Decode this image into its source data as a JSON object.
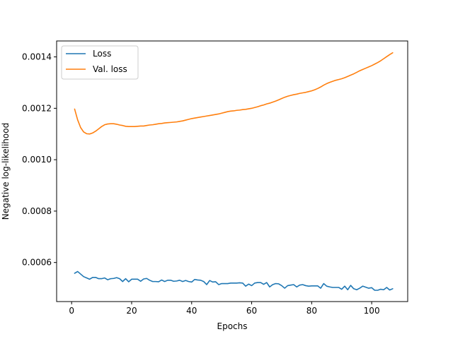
{
  "chart_data": {
    "type": "line",
    "xlabel": "Epochs",
    "ylabel": "Negative log-likelihood",
    "xlim": [
      -5,
      112
    ],
    "ylim": [
      0.000448,
      0.001462
    ],
    "xticks": [
      0,
      20,
      40,
      60,
      80,
      100
    ],
    "xtick_labels": [
      "0",
      "20",
      "40",
      "60",
      "80",
      "100"
    ],
    "yticks": [
      0.0006,
      0.0008,
      0.001,
      0.0012,
      0.0014
    ],
    "ytick_labels": [
      "0.0006",
      "0.0008",
      "0.0010",
      "0.0012",
      "0.0014"
    ],
    "grid": false,
    "legend_position": "top-left",
    "series": [
      {
        "name": "Loss",
        "color": "#1f77b4",
        "x": [
          1,
          2,
          3,
          4,
          5,
          6,
          7,
          8,
          9,
          10,
          11,
          12,
          13,
          14,
          15,
          16,
          17,
          18,
          19,
          20,
          21,
          22,
          23,
          24,
          25,
          26,
          27,
          28,
          29,
          30,
          31,
          32,
          33,
          34,
          35,
          36,
          37,
          38,
          39,
          40,
          41,
          42,
          43,
          44,
          45,
          46,
          47,
          48,
          49,
          50,
          51,
          52,
          53,
          54,
          55,
          56,
          57,
          58,
          59,
          60,
          61,
          62,
          63,
          64,
          65,
          66,
          67,
          68,
          69,
          70,
          71,
          72,
          73,
          74,
          75,
          76,
          77,
          78,
          79,
          80,
          81,
          82,
          83,
          84,
          85,
          86,
          87,
          88,
          89,
          90,
          91,
          92,
          93,
          94,
          95,
          96,
          97,
          98,
          99,
          100,
          101,
          102,
          103,
          104,
          105,
          106,
          107
        ],
        "values": [
          0.000558,
          0.000565,
          0.000555,
          0.000545,
          0.00054,
          0.000535,
          0.000542,
          0.000542,
          0.000537,
          0.000537,
          0.00054,
          0.000533,
          0.000537,
          0.000538,
          0.000541,
          0.000537,
          0.000526,
          0.000537,
          0.000525,
          0.000535,
          0.000535,
          0.000535,
          0.000527,
          0.000536,
          0.000538,
          0.000531,
          0.000526,
          0.000526,
          0.000525,
          0.000532,
          0.000526,
          0.000531,
          0.000531,
          0.000527,
          0.000528,
          0.000531,
          0.000526,
          0.00053,
          0.000526,
          0.000524,
          0.000534,
          0.000532,
          0.000531,
          0.000526,
          0.000514,
          0.00053,
          0.000524,
          0.000525,
          0.000514,
          0.000518,
          0.000518,
          0.000518,
          0.00052,
          0.00052,
          0.00052,
          0.000521,
          0.00052,
          0.000508,
          0.000516,
          0.00051,
          0.00052,
          0.000522,
          0.000522,
          0.000515,
          0.000522,
          0.000505,
          0.000514,
          0.000518,
          0.000517,
          0.00051,
          0.0005,
          0.00051,
          0.000512,
          0.000514,
          0.000505,
          0.000512,
          0.000514,
          0.00051,
          0.000508,
          0.000509,
          0.000509,
          0.000509,
          0.0005,
          0.000518,
          0.000508,
          0.000505,
          0.000503,
          0.000503,
          0.000503,
          0.000496,
          0.000508,
          0.000494,
          0.000511,
          0.000498,
          0.000494,
          0.0005,
          0.000508,
          0.000504,
          0.0005,
          0.000502,
          0.000492,
          0.000492,
          0.000496,
          0.000494,
          0.000503,
          0.000493,
          0.000498
        ]
      },
      {
        "name": "Val. loss",
        "color": "#ff7f0e",
        "x": [
          1,
          2,
          3,
          4,
          5,
          6,
          7,
          8,
          9,
          10,
          11,
          12,
          13,
          14,
          15,
          16,
          17,
          18,
          19,
          20,
          21,
          22,
          23,
          24,
          25,
          26,
          27,
          28,
          29,
          30,
          31,
          32,
          33,
          34,
          35,
          36,
          37,
          38,
          39,
          40,
          41,
          42,
          43,
          44,
          45,
          46,
          47,
          48,
          49,
          50,
          51,
          52,
          53,
          54,
          55,
          56,
          57,
          58,
          59,
          60,
          61,
          62,
          63,
          64,
          65,
          66,
          67,
          68,
          69,
          70,
          71,
          72,
          73,
          74,
          75,
          76,
          77,
          78,
          79,
          80,
          81,
          82,
          83,
          84,
          85,
          86,
          87,
          88,
          89,
          90,
          91,
          92,
          93,
          94,
          95,
          96,
          97,
          98,
          99,
          100,
          101,
          102,
          103,
          104,
          105,
          106,
          107
        ],
        "values": [
          0.001197,
          0.001155,
          0.001125,
          0.001108,
          0.001101,
          0.0011,
          0.001104,
          0.001111,
          0.00112,
          0.001129,
          0.001136,
          0.001139,
          0.00114,
          0.00114,
          0.001138,
          0.001135,
          0.001133,
          0.00113,
          0.001129,
          0.001129,
          0.001129,
          0.00113,
          0.001131,
          0.001131,
          0.001133,
          0.001135,
          0.001136,
          0.001138,
          0.00114,
          0.001141,
          0.001143,
          0.001144,
          0.001145,
          0.001146,
          0.001147,
          0.001149,
          0.001151,
          0.001154,
          0.001157,
          0.00116,
          0.001162,
          0.001164,
          0.001166,
          0.001168,
          0.00117,
          0.001172,
          0.001174,
          0.001176,
          0.001178,
          0.001181,
          0.001184,
          0.001187,
          0.001189,
          0.00119,
          0.001192,
          0.001193,
          0.001195,
          0.001196,
          0.001198,
          0.0012,
          0.001203,
          0.001206,
          0.00121,
          0.001213,
          0.001217,
          0.00122,
          0.001224,
          0.001228,
          0.001233,
          0.001238,
          0.001243,
          0.001247,
          0.00125,
          0.001253,
          0.001255,
          0.001258,
          0.00126,
          0.001262,
          0.001265,
          0.001268,
          0.001272,
          0.001277,
          0.001283,
          0.00129,
          0.001296,
          0.001301,
          0.001305,
          0.001309,
          0.001312,
          0.001315,
          0.001319,
          0.001324,
          0.001329,
          0.001334,
          0.00134,
          0.001346,
          0.001351,
          0.001356,
          0.001361,
          0.001366,
          0.001372,
          0.001378,
          0.001385,
          0.001393,
          0.001401,
          0.001409,
          0.001416
        ]
      }
    ]
  }
}
